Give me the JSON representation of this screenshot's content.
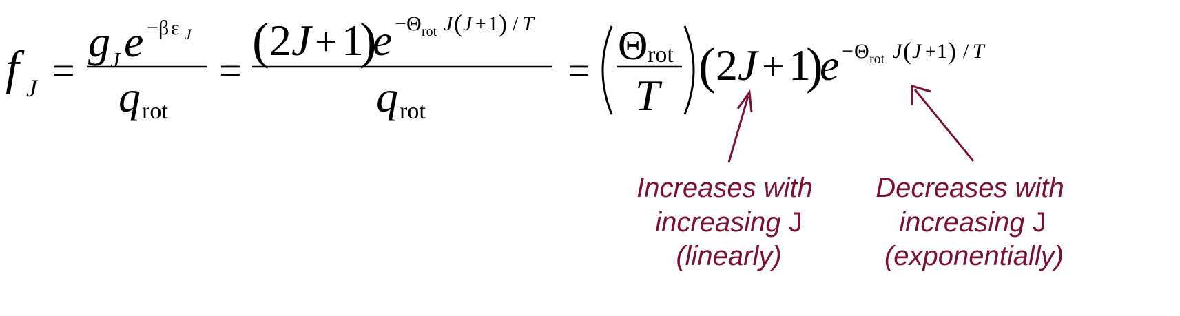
{
  "equation": {
    "lhs": {
      "base": "f",
      "subscript": "J"
    },
    "equals": "=",
    "term1": {
      "num": {
        "g": "g",
        "g_sub": "J",
        "e": "e",
        "exp_neg": "−",
        "exp_beta": "β",
        "exp_eps": "ε",
        "exp_sub": "J"
      },
      "den": {
        "q": "q",
        "q_sub": "rot"
      }
    },
    "term2": {
      "num": {
        "lparen": "(",
        "two": "2",
        "J": "J",
        "plus": "+",
        "one": "1",
        "rparen": ")",
        "e": "e",
        "exp_neg": "−",
        "exp_theta": "Θ",
        "exp_theta_sub": "rot",
        "exp_J": "J",
        "exp_lparen": "(",
        "exp_J2": "J",
        "exp_plus": "+",
        "exp_one": "1",
        "exp_rparen": ")",
        "exp_slash": "/",
        "exp_T": "T"
      },
      "den": {
        "q": "q",
        "q_sub": "rot"
      }
    },
    "term3": {
      "frac_num": {
        "theta": "Θ",
        "theta_sub": "rot"
      },
      "frac_den": "T",
      "lparen": "(",
      "two": "2",
      "J": "J",
      "plus": "+",
      "one": "1",
      "rparen": ")",
      "e": "e",
      "exp_neg": "−",
      "exp_theta": "Θ",
      "exp_theta_sub": "rot",
      "exp_J": "J",
      "exp_lparen": "(",
      "exp_J2": "J",
      "exp_plus": "+",
      "exp_one": "1",
      "exp_rparen": ")",
      "exp_slash": "/",
      "exp_T": "T"
    }
  },
  "annotations": {
    "linear": {
      "line1": "Increases with",
      "line2_prefix": "increasing ",
      "line2_var": "J",
      "line3": "(linearly)"
    },
    "exponential": {
      "line1": "Decreases with",
      "line2_prefix": "increasing ",
      "line2_var": "J",
      "line3": "(exponentially)"
    }
  },
  "colors": {
    "annotation": "#7b1030",
    "math": "#000000"
  }
}
